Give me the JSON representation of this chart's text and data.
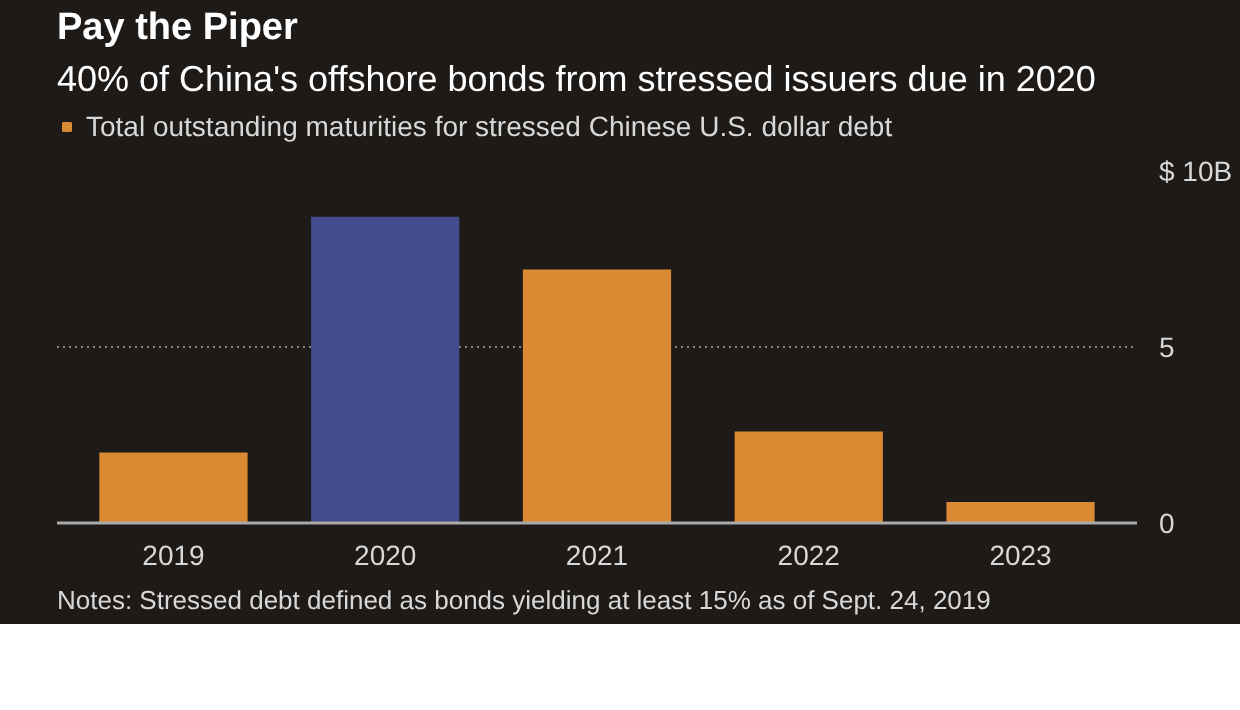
{
  "chart_data": {
    "type": "bar",
    "title": "Pay the Piper",
    "subtitle": "40% of China's offshore bonds from stressed issuers due in 2020",
    "categories": [
      "2019",
      "2020",
      "2021",
      "2022",
      "2023"
    ],
    "series": [
      {
        "name": "Total outstanding maturities for stressed Chinese U.S. dollar debt",
        "color": "#d98a32",
        "colors": [
          "#d98a32",
          "#434c8c",
          "#d98a32",
          "#d98a32",
          "#d98a32"
        ],
        "values": [
          2.0,
          8.7,
          7.2,
          2.6,
          0.6
        ]
      }
    ],
    "ylim": [
      0,
      10
    ],
    "yticks": [
      0,
      5,
      {
        "value": 10,
        "label": "$ 10B"
      }
    ],
    "grid": "y",
    "legend": "top left",
    "annotations": [
      "Notes: Stressed debt defined as bonds yielding at least 15% as of Sept. 24, 2019"
    ]
  }
}
